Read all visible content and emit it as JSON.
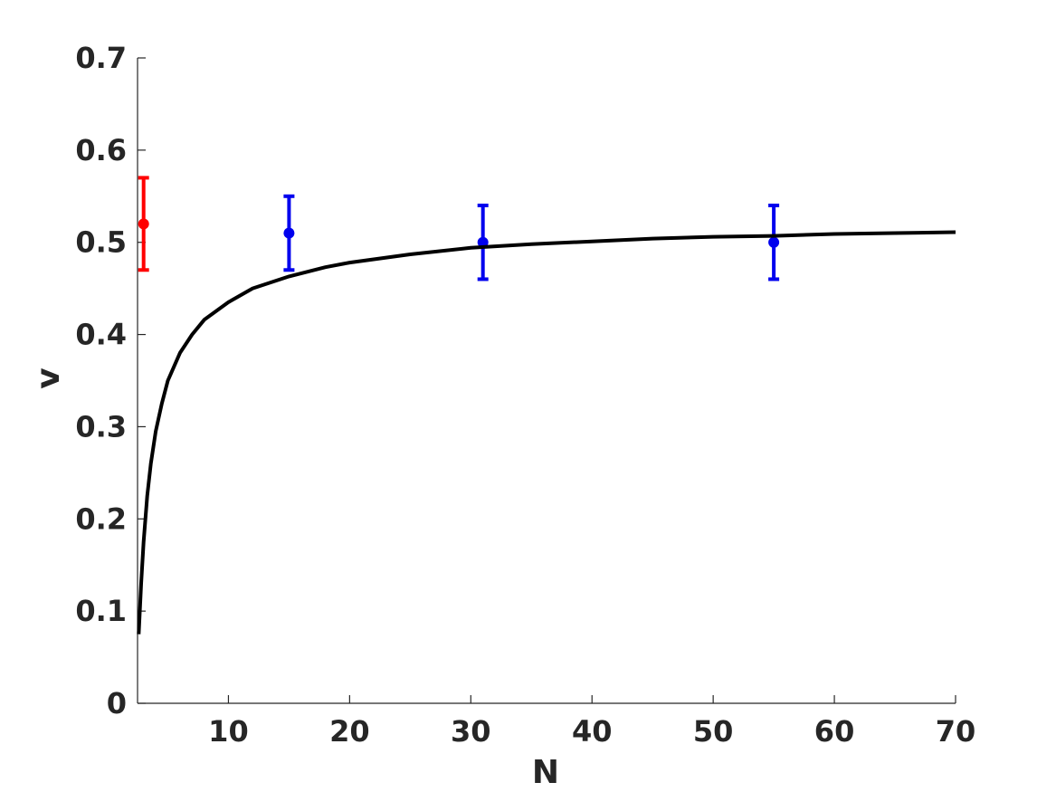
{
  "chart_data": {
    "type": "scatter",
    "title": "",
    "xlabel": "N",
    "ylabel": "v",
    "xlim": [
      2.5,
      70
    ],
    "ylim": [
      0,
      0.7
    ],
    "xticks": [
      10,
      20,
      30,
      40,
      50,
      60,
      70
    ],
    "yticks": [
      0,
      0.1,
      0.2,
      0.3,
      0.4,
      0.5,
      0.6,
      0.7
    ],
    "xtick_labels": [
      "10",
      "20",
      "30",
      "40",
      "50",
      "60",
      "70"
    ],
    "ytick_labels": [
      "0",
      "0.1",
      "0.2",
      "0.3",
      "0.4",
      "0.5",
      "0.6",
      "0.7"
    ],
    "grid": false,
    "series": [
      {
        "kind": "errorbar",
        "color": "#ff0000",
        "points": [
          {
            "x": 3,
            "y": 0.52,
            "ylow": 0.47,
            "yhigh": 0.57
          }
        ]
      },
      {
        "kind": "errorbar",
        "color": "#0000ee",
        "points": [
          {
            "x": 15,
            "y": 0.51,
            "ylow": 0.47,
            "yhigh": 0.55
          },
          {
            "x": 31,
            "y": 0.5,
            "ylow": 0.46,
            "yhigh": 0.54
          },
          {
            "x": 55,
            "y": 0.5,
            "ylow": 0.46,
            "yhigh": 0.54
          }
        ]
      },
      {
        "kind": "line",
        "color": "#000000",
        "points": [
          [
            2.6,
            0.075
          ],
          [
            2.8,
            0.13
          ],
          [
            3.0,
            0.175
          ],
          [
            3.3,
            0.225
          ],
          [
            3.6,
            0.26
          ],
          [
            4.0,
            0.295
          ],
          [
            4.5,
            0.325
          ],
          [
            5.0,
            0.35
          ],
          [
            6.0,
            0.38
          ],
          [
            7.0,
            0.4
          ],
          [
            8.0,
            0.416
          ],
          [
            10.0,
            0.435
          ],
          [
            12.0,
            0.45
          ],
          [
            15.0,
            0.463
          ],
          [
            18.0,
            0.473
          ],
          [
            20.0,
            0.478
          ],
          [
            25.0,
            0.487
          ],
          [
            30.0,
            0.494
          ],
          [
            35.0,
            0.498
          ],
          [
            40.0,
            0.501
          ],
          [
            45.0,
            0.504
          ],
          [
            50.0,
            0.506
          ],
          [
            55.0,
            0.507
          ],
          [
            60.0,
            0.509
          ],
          [
            65.0,
            0.51
          ],
          [
            70.0,
            0.511
          ]
        ]
      }
    ]
  }
}
